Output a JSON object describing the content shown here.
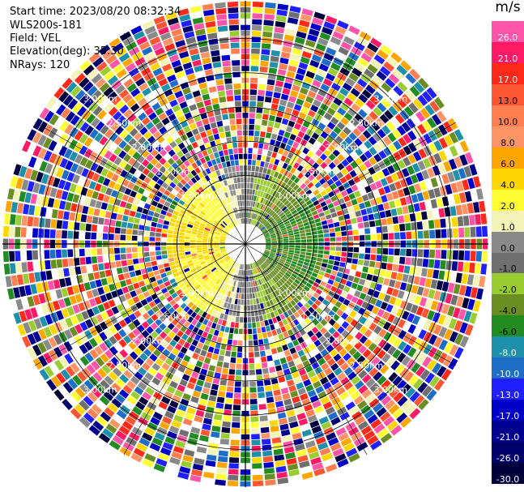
{
  "header": {
    "start_time": "Start time: 2023/08/20 08:32:34",
    "instrument": "WLS200s-181",
    "field": "Field: VEL",
    "elevation": "Elevation(deg): 35.30",
    "nrays": "NRays: 120"
  },
  "colorbar": {
    "unit": "m/s",
    "levels": [
      {
        "label": "26.0",
        "color": "#ff55a8"
      },
      {
        "label": "21.0",
        "color": "#ff1a66"
      },
      {
        "label": "17.0",
        "color": "#ff2a1a"
      },
      {
        "label": "13.0",
        "color": "#ff5533"
      },
      {
        "label": "10.0",
        "color": "#ff7f50"
      },
      {
        "label": "8.0",
        "color": "#ff9566"
      },
      {
        "label": "6.0",
        "color": "#ffa500"
      },
      {
        "label": "4.0",
        "color": "#ffd700"
      },
      {
        "label": "2.0",
        "color": "#ffff33"
      },
      {
        "label": "1.0",
        "color": "#f4f4b8"
      },
      {
        "label": "0.0",
        "color": "#8a8a8a"
      },
      {
        "label": "-1.0",
        "color": "#707070"
      },
      {
        "label": "-2.0",
        "color": "#9acd32"
      },
      {
        "label": "-4.0",
        "color": "#6b8e23"
      },
      {
        "label": "-6.0",
        "color": "#228b22"
      },
      {
        "label": "-8.0",
        "color": "#1e90aa"
      },
      {
        "label": "-10.0",
        "color": "#1e6ec8"
      },
      {
        "label": "-13.0",
        "color": "#2020ff"
      },
      {
        "label": "-17.0",
        "color": "#0000c8"
      },
      {
        "label": "-21.0",
        "color": "#000090"
      },
      {
        "label": "-26.0",
        "color": "#00006a"
      },
      {
        "label": "-30.0",
        "color": "#00003a"
      }
    ]
  },
  "range_rings": {
    "labels": [
      "1.00km",
      "1.50km",
      "2.00km",
      "2.50km",
      "3.00km"
    ],
    "values_km": [
      1.0,
      1.5,
      2.0,
      2.5,
      3.0
    ],
    "max_range_km": 3.55
  },
  "chart_data": {
    "type": "heatmap",
    "projection": "polar-ppi",
    "field": "VEL",
    "units": "m/s",
    "elevation_deg": 35.3,
    "n_rays": 120,
    "range_km": [
      0.3,
      3.55
    ],
    "coherent_region_km": 1.15,
    "pattern": "radial velocity: positive (yellow/orange) toward west, negative (greens) toward east, near-zero grey along north-south axis near radar; noisy random values beyond about 1.1 km"
  }
}
